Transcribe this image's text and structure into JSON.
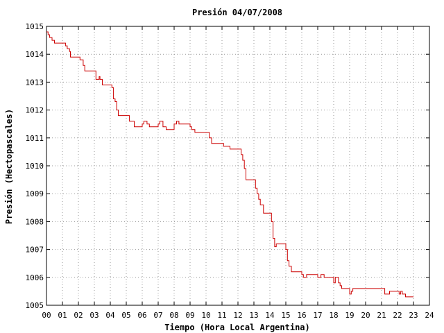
{
  "chart_data": {
    "type": "line",
    "title": "Presión 04/07/2008",
    "xlabel": "Tiempo (Hora Local Argentina)",
    "ylabel": "Presión (Hectopascales)",
    "xlim": [
      0,
      24
    ],
    "ylim": [
      1005,
      1015
    ],
    "x_ticks": [
      "00",
      "01",
      "02",
      "03",
      "04",
      "05",
      "06",
      "07",
      "08",
      "09",
      "10",
      "11",
      "12",
      "13",
      "14",
      "15",
      "16",
      "17",
      "18",
      "19",
      "20",
      "21",
      "22",
      "23",
      "24"
    ],
    "y_ticks": [
      "1005",
      "1006",
      "1007",
      "1008",
      "1009",
      "1010",
      "1011",
      "1012",
      "1013",
      "1014",
      "1015"
    ],
    "grid": true,
    "line_color": "#cc0000",
    "series": [
      {
        "x": [
          0.0,
          0.1,
          0.2,
          0.35,
          0.5,
          0.6,
          1.2,
          1.3,
          1.45,
          1.5,
          2.0,
          2.1,
          2.3,
          2.4,
          3.0,
          3.1,
          3.3,
          3.35,
          3.5,
          4.0,
          4.1,
          4.2,
          4.3,
          4.4,
          4.5,
          5.0,
          5.2,
          5.5,
          6.0,
          6.1,
          6.3,
          6.45,
          6.6,
          7.0,
          7.1,
          7.3,
          7.5,
          7.6,
          8.0,
          8.15,
          8.3,
          8.5,
          9.0,
          9.1,
          9.3,
          10.0,
          10.2,
          10.35,
          11.0,
          11.1,
          11.3,
          11.5,
          12.0,
          12.2,
          12.3,
          12.4,
          12.5,
          13.0,
          13.1,
          13.2,
          13.3,
          13.4,
          13.6,
          14.0,
          14.1,
          14.2,
          14.3,
          14.4,
          14.6,
          15.0,
          15.1,
          15.2,
          15.35,
          15.5,
          16.0,
          16.1,
          16.3,
          16.5,
          17.0,
          17.2,
          17.4,
          17.6,
          18.0,
          18.1,
          18.3,
          18.4,
          18.5,
          18.6,
          19.0,
          19.1,
          19.2,
          19.3,
          19.5,
          20.0,
          20.5,
          21.0,
          21.2,
          21.3,
          21.5,
          22.0,
          22.1,
          22.2,
          22.3,
          22.5,
          23.0
        ],
        "y": [
          1014.8,
          1014.7,
          1014.6,
          1014.5,
          1014.4,
          1014.4,
          1014.3,
          1014.2,
          1014.1,
          1013.9,
          1013.9,
          1013.8,
          1013.6,
          1013.4,
          1013.4,
          1013.1,
          1013.2,
          1013.1,
          1012.9,
          1012.9,
          1012.8,
          1012.4,
          1012.3,
          1012.0,
          1011.8,
          1011.8,
          1011.6,
          1011.4,
          1011.5,
          1011.6,
          1011.5,
          1011.4,
          1011.4,
          1011.5,
          1011.6,
          1011.4,
          1011.3,
          1011.3,
          1011.5,
          1011.6,
          1011.5,
          1011.5,
          1011.4,
          1011.3,
          1011.2,
          1011.2,
          1011.0,
          1010.8,
          1010.8,
          1010.7,
          1010.7,
          1010.6,
          1010.6,
          1010.4,
          1010.2,
          1009.9,
          1009.5,
          1009.5,
          1009.2,
          1009.0,
          1008.8,
          1008.6,
          1008.3,
          1008.3,
          1008.0,
          1007.4,
          1007.1,
          1007.2,
          1007.2,
          1007.0,
          1006.6,
          1006.4,
          1006.2,
          1006.2,
          1006.1,
          1006.0,
          1006.1,
          1006.1,
          1006.0,
          1006.1,
          1006.0,
          1006.0,
          1005.8,
          1006.0,
          1005.8,
          1005.7,
          1005.6,
          1005.6,
          1005.4,
          1005.5,
          1005.6,
          1005.6,
          1005.6,
          1005.6,
          1005.6,
          1005.6,
          1005.4,
          1005.4,
          1005.5,
          1005.5,
          1005.4,
          1005.5,
          1005.4,
          1005.3,
          1005.3
        ]
      }
    ]
  }
}
